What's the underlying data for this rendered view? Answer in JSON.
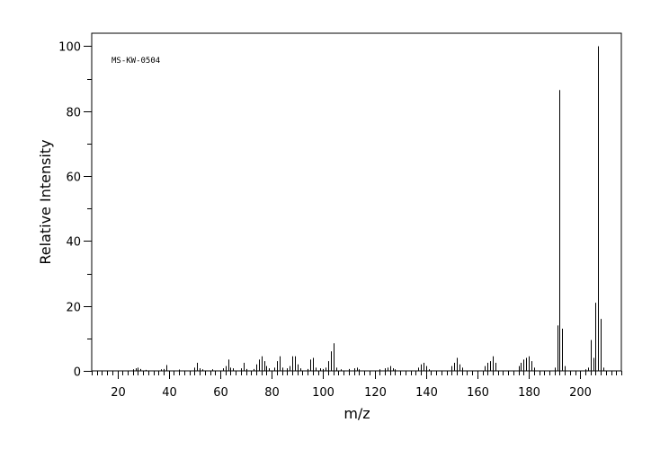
{
  "chart_data": {
    "type": "bar",
    "annotation": "MS-KW-0504",
    "xlabel": "m/z",
    "ylabel": "Relative Intensity",
    "xlim": [
      10,
      216
    ],
    "ylim": [
      0,
      104
    ],
    "x_ticks": [
      20,
      40,
      60,
      80,
      100,
      120,
      140,
      160,
      180,
      200
    ],
    "y_ticks": [
      0,
      20,
      40,
      60,
      80,
      100
    ],
    "x_minor_step": 2,
    "y_minor_step": 10,
    "peaks": [
      [
        26,
        0.5
      ],
      [
        27,
        0.8
      ],
      [
        28,
        1.0
      ],
      [
        29,
        0.6
      ],
      [
        31,
        0.3
      ],
      [
        37,
        0.5
      ],
      [
        38,
        0.6
      ],
      [
        39,
        1.8
      ],
      [
        44,
        0.4
      ],
      [
        50,
        1.0
      ],
      [
        51,
        2.5
      ],
      [
        52,
        0.8
      ],
      [
        53,
        0.5
      ],
      [
        57,
        0.5
      ],
      [
        61,
        0.8
      ],
      [
        62,
        1.5
      ],
      [
        63,
        3.5
      ],
      [
        64,
        1.0
      ],
      [
        65,
        0.8
      ],
      [
        68,
        0.8
      ],
      [
        69,
        2.5
      ],
      [
        70,
        0.6
      ],
      [
        73,
        0.6
      ],
      [
        74,
        2.0
      ],
      [
        75,
        3.5
      ],
      [
        76,
        4.5
      ],
      [
        77,
        3.0
      ],
      [
        78,
        1.5
      ],
      [
        79,
        0.8
      ],
      [
        81,
        1.0
      ],
      [
        82,
        3.0
      ],
      [
        83,
        4.5
      ],
      [
        84,
        1.0
      ],
      [
        86,
        0.8
      ],
      [
        87,
        1.5
      ],
      [
        88,
        4.5
      ],
      [
        89,
        4.5
      ],
      [
        90,
        2.0
      ],
      [
        91,
        0.8
      ],
      [
        94,
        0.6
      ],
      [
        95,
        3.5
      ],
      [
        96,
        4.0
      ],
      [
        97,
        1.0
      ],
      [
        99,
        0.8
      ],
      [
        100,
        0.6
      ],
      [
        101,
        1.0
      ],
      [
        102,
        3.0
      ],
      [
        103,
        6.0
      ],
      [
        104,
        8.5
      ],
      [
        105,
        1.0
      ],
      [
        107,
        0.5
      ],
      [
        110,
        0.6
      ],
      [
        112,
        0.8
      ],
      [
        113,
        1.0
      ],
      [
        114,
        0.5
      ],
      [
        122,
        0.5
      ],
      [
        124,
        0.8
      ],
      [
        125,
        1.0
      ],
      [
        126,
        1.5
      ],
      [
        127,
        0.8
      ],
      [
        128,
        0.5
      ],
      [
        137,
        1.0
      ],
      [
        138,
        2.0
      ],
      [
        139,
        2.5
      ],
      [
        140,
        1.5
      ],
      [
        141,
        0.5
      ],
      [
        150,
        1.5
      ],
      [
        151,
        2.5
      ],
      [
        152,
        4.0
      ],
      [
        153,
        2.0
      ],
      [
        154,
        1.0
      ],
      [
        163,
        1.5
      ],
      [
        164,
        2.5
      ],
      [
        165,
        3.0
      ],
      [
        166,
        4.5
      ],
      [
        167,
        2.5
      ],
      [
        176,
        1.5
      ],
      [
        177,
        2.5
      ],
      [
        178,
        3.5
      ],
      [
        179,
        4.0
      ],
      [
        180,
        4.5
      ],
      [
        181,
        3.0
      ],
      [
        182,
        1.0
      ],
      [
        190,
        1.0
      ],
      [
        191,
        14.0
      ],
      [
        192,
        86.5
      ],
      [
        193,
        13.0
      ],
      [
        194,
        1.5
      ],
      [
        202,
        0.5
      ],
      [
        203,
        1.0
      ],
      [
        204,
        9.5
      ],
      [
        205,
        4.0
      ],
      [
        206,
        21.0
      ],
      [
        207,
        100
      ],
      [
        208,
        16.0
      ],
      [
        209,
        1.0
      ]
    ]
  }
}
